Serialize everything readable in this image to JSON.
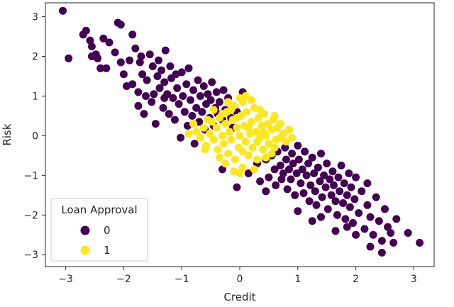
{
  "chart_data": {
    "type": "scatter",
    "title": "",
    "xlabel": "Credit",
    "ylabel": "Risk",
    "xlim": [
      -3.35,
      3.35
    ],
    "ylim": [
      -3.3,
      3.35
    ],
    "xticks": [
      -3,
      -2,
      -1,
      0,
      1,
      2,
      3
    ],
    "yticks": [
      -3,
      -2,
      -1,
      0,
      1,
      2,
      3
    ],
    "xtick_labels": [
      "−3",
      "−2",
      "−1",
      "0",
      "1",
      "2",
      "3"
    ],
    "ytick_labels": [
      "−3",
      "−2",
      "−1",
      "0",
      "1",
      "2",
      "3"
    ],
    "grid": false,
    "legend": {
      "title": "Loan Approval",
      "position": "lower-left",
      "entries": [
        {
          "label": "0",
          "color": "#440154"
        },
        {
          "label": "1",
          "color": "#fde725"
        }
      ]
    },
    "series": [
      {
        "name": "0",
        "color": "#440154",
        "points": [
          [
            -3.05,
            3.15
          ],
          [
            -2.95,
            1.95
          ],
          [
            -2.7,
            2.55
          ],
          [
            -2.65,
            2.65
          ],
          [
            -2.58,
            2.4
          ],
          [
            -2.55,
            2.0
          ],
          [
            -2.48,
            2.05
          ],
          [
            -2.45,
            1.95
          ],
          [
            -2.4,
            1.7
          ],
          [
            -2.35,
            2.45
          ],
          [
            -2.25,
            2.35
          ],
          [
            -2.15,
            2.1
          ],
          [
            -2.1,
            2.85
          ],
          [
            -2.05,
            2.8
          ],
          [
            -1.85,
            2.55
          ],
          [
            -2.05,
            1.85
          ],
          [
            -2.0,
            1.55
          ],
          [
            -1.95,
            1.25
          ],
          [
            -1.9,
            1.9
          ],
          [
            -1.85,
            1.3
          ],
          [
            -1.8,
            2.2
          ],
          [
            -1.75,
            1.1
          ],
          [
            -1.72,
            1.85
          ],
          [
            -1.7,
            2.0
          ],
          [
            -1.68,
            1.55
          ],
          [
            -1.65,
            0.55
          ],
          [
            -1.6,
            1.4
          ],
          [
            -1.55,
            2.05
          ],
          [
            -1.52,
            0.85
          ],
          [
            -1.5,
            1.75
          ],
          [
            -1.48,
            1.05
          ],
          [
            -1.45,
            0.3
          ],
          [
            -1.42,
            1.5
          ],
          [
            -1.4,
            1.9
          ],
          [
            -1.38,
            1.2
          ],
          [
            -1.35,
            1.65
          ],
          [
            -1.32,
            0.7
          ],
          [
            -1.3,
            1.35
          ],
          [
            -1.28,
            2.15
          ],
          [
            -1.25,
            1.05
          ],
          [
            -1.22,
            0.55
          ],
          [
            -1.2,
            1.75
          ],
          [
            -1.18,
            1.45
          ],
          [
            -1.15,
            0.95
          ],
          [
            -1.12,
            0.4
          ],
          [
            -1.1,
            1.55
          ],
          [
            -1.08,
            1.2
          ],
          [
            -1.05,
            0.8
          ],
          [
            -1.02,
            -0.05
          ],
          [
            -1.0,
            1.6
          ],
          [
            -0.98,
            1.0
          ],
          [
            -0.95,
            0.6
          ],
          [
            -0.92,
            1.3
          ],
          [
            -0.9,
            0.25
          ],
          [
            -0.88,
            1.7
          ],
          [
            -0.85,
            0.9
          ],
          [
            -0.82,
            0.5
          ],
          [
            -0.8,
            1.15
          ],
          [
            -0.78,
            -0.2
          ],
          [
            -0.75,
            0.7
          ],
          [
            -0.72,
            1.4
          ],
          [
            -0.7,
            0.35
          ],
          [
            -0.68,
            1.0
          ],
          [
            -0.65,
            0.6
          ],
          [
            -0.62,
            1.25
          ],
          [
            -0.6,
            0.15
          ],
          [
            -0.58,
            0.8
          ],
          [
            -0.55,
            1.05
          ],
          [
            -0.52,
            0.45
          ],
          [
            -0.5,
            0.9
          ],
          [
            -0.48,
            1.35
          ],
          [
            -0.45,
            0.25
          ],
          [
            -0.42,
            0.7
          ],
          [
            -0.4,
            1.1
          ],
          [
            -0.38,
            0.55
          ],
          [
            -0.35,
            0.85
          ],
          [
            -0.3,
            0.4
          ],
          [
            -0.28,
            1.15
          ],
          [
            -0.25,
            0.65
          ],
          [
            -0.2,
            0.95
          ],
          [
            -0.15,
            0.45
          ],
          [
            -0.1,
            0.75
          ],
          [
            -0.05,
            0.6
          ],
          [
            0.05,
            1.1
          ],
          [
            -0.12,
            0.2
          ],
          [
            -1.3,
            0.95
          ],
          [
            -1.62,
            1.0
          ],
          [
            -1.75,
            0.75
          ],
          [
            -2.3,
            1.7
          ],
          [
            -2.55,
            2.25
          ],
          [
            -0.3,
            -0.85
          ],
          [
            -0.05,
            -1.3
          ],
          [
            0.15,
            -0.95
          ],
          [
            0.3,
            -0.7
          ],
          [
            0.35,
            -1.15
          ],
          [
            0.45,
            -0.6
          ],
          [
            0.5,
            -1.05
          ],
          [
            0.55,
            -0.5
          ],
          [
            0.6,
            -0.85
          ],
          [
            0.62,
            -1.25
          ],
          [
            0.65,
            -0.4
          ],
          [
            0.7,
            -0.75
          ],
          [
            0.72,
            -1.1
          ],
          [
            0.75,
            -0.95
          ],
          [
            0.78,
            -0.3
          ],
          [
            0.8,
            -0.6
          ],
          [
            0.82,
            -1.35
          ],
          [
            0.85,
            -0.85
          ],
          [
            0.88,
            -1.1
          ],
          [
            0.9,
            -0.45
          ],
          [
            0.92,
            -0.7
          ],
          [
            0.95,
            -1.5
          ],
          [
            0.98,
            -0.95
          ],
          [
            1.0,
            -0.25
          ],
          [
            1.02,
            -0.6
          ],
          [
            1.05,
            -1.2
          ],
          [
            1.08,
            -0.85
          ],
          [
            1.1,
            -1.45
          ],
          [
            1.12,
            -0.4
          ],
          [
            1.15,
            -1.0
          ],
          [
            1.18,
            -0.7
          ],
          [
            1.2,
            -1.65
          ],
          [
            1.22,
            -1.25
          ],
          [
            1.25,
            -0.55
          ],
          [
            1.28,
            -0.95
          ],
          [
            1.3,
            -1.4
          ],
          [
            1.32,
            -1.75
          ],
          [
            1.35,
            -0.8
          ],
          [
            1.38,
            -1.15
          ],
          [
            1.4,
            -0.45
          ],
          [
            1.42,
            -1.55
          ],
          [
            1.45,
            -1.0
          ],
          [
            1.48,
            -1.3
          ],
          [
            1.5,
            -0.7
          ],
          [
            1.52,
            -1.85
          ],
          [
            1.55,
            -1.1
          ],
          [
            1.58,
            -1.5
          ],
          [
            1.6,
            -0.9
          ],
          [
            1.62,
            -1.25
          ],
          [
            1.65,
            -1.65
          ],
          [
            1.68,
            -2.0
          ],
          [
            1.7,
            -1.05
          ],
          [
            1.72,
            -1.4
          ],
          [
            1.75,
            -0.75
          ],
          [
            1.78,
            -1.7
          ],
          [
            1.8,
            -1.2
          ],
          [
            1.82,
            -2.1
          ],
          [
            1.85,
            -1.5
          ],
          [
            1.88,
            -0.95
          ],
          [
            1.9,
            -1.8
          ],
          [
            1.92,
            -1.3
          ],
          [
            1.95,
            -2.2
          ],
          [
            1.98,
            -1.6
          ],
          [
            2.0,
            -1.05
          ],
          [
            2.05,
            -1.95
          ],
          [
            2.1,
            -1.4
          ],
          [
            2.15,
            -2.35
          ],
          [
            2.2,
            -1.75
          ],
          [
            2.25,
            -2.05
          ],
          [
            2.3,
            -2.5
          ],
          [
            2.35,
            -1.55
          ],
          [
            2.4,
            -2.15
          ],
          [
            2.45,
            -2.65
          ],
          [
            2.5,
            -1.85
          ],
          [
            2.55,
            -2.3
          ],
          [
            2.6,
            -2.45
          ],
          [
            2.65,
            -2.7
          ],
          [
            2.2,
            -1.2
          ],
          [
            1.65,
            -2.4
          ],
          [
            1.4,
            -2.05
          ],
          [
            2.25,
            -2.8
          ],
          [
            2.45,
            -2.95
          ],
          [
            2.9,
            -2.45
          ],
          [
            3.1,
            -2.7
          ],
          [
            0.45,
            -1.4
          ],
          [
            1.0,
            -1.9
          ],
          [
            1.25,
            -2.15
          ],
          [
            2.0,
            -2.5
          ],
          [
            1.85,
            -2.3
          ],
          [
            2.7,
            -2.1
          ]
        ]
      },
      {
        "name": "1",
        "color": "#fde725",
        "points": [
          [
            -0.75,
            0.1
          ],
          [
            -0.68,
            -0.05
          ],
          [
            -0.62,
            0.2
          ],
          [
            -0.58,
            -0.25
          ],
          [
            -0.52,
            0.05
          ],
          [
            -0.48,
            0.35
          ],
          [
            -0.45,
            -0.1
          ],
          [
            -0.4,
            0.2
          ],
          [
            -0.38,
            -0.35
          ],
          [
            -0.35,
            0.45
          ],
          [
            -0.3,
            0.0
          ],
          [
            -0.28,
            -0.2
          ],
          [
            -0.25,
            0.3
          ],
          [
            -0.22,
            0.6
          ],
          [
            -0.2,
            -0.45
          ],
          [
            -0.18,
            0.1
          ],
          [
            -0.15,
            -0.1
          ],
          [
            -0.12,
            0.4
          ],
          [
            -0.1,
            0.75
          ],
          [
            -0.08,
            -0.6
          ],
          [
            -0.05,
            0.2
          ],
          [
            -0.02,
            -0.3
          ],
          [
            0.0,
            0.0
          ],
          [
            0.02,
            0.5
          ],
          [
            0.05,
            0.85
          ],
          [
            0.05,
            -0.8
          ],
          [
            0.08,
            0.25
          ],
          [
            0.1,
            -0.15
          ],
          [
            0.12,
            0.6
          ],
          [
            0.15,
            -0.5
          ],
          [
            0.18,
            0.05
          ],
          [
            0.2,
            0.35
          ],
          [
            0.22,
            -0.3
          ],
          [
            0.25,
            0.7
          ],
          [
            0.28,
            0.1
          ],
          [
            0.3,
            -0.15
          ],
          [
            0.32,
            0.45
          ],
          [
            0.35,
            -0.05
          ],
          [
            0.38,
            0.25
          ],
          [
            0.4,
            -0.35
          ],
          [
            0.42,
            0.55
          ],
          [
            0.45,
            0.0
          ],
          [
            0.48,
            0.3
          ],
          [
            0.5,
            -0.2
          ],
          [
            0.55,
            0.15
          ],
          [
            0.58,
            0.4
          ],
          [
            0.62,
            -0.1
          ],
          [
            0.65,
            0.2
          ],
          [
            0.7,
            -0.05
          ],
          [
            0.75,
            0.05
          ],
          [
            -0.1,
            -0.9
          ],
          [
            0.0,
            0.95
          ],
          [
            0.1,
            1.0
          ],
          [
            -0.3,
            0.55
          ],
          [
            0.3,
            -0.6
          ],
          [
            0.55,
            -0.45
          ],
          [
            -0.55,
            0.4
          ],
          [
            0.8,
            -0.15
          ],
          [
            -0.8,
            0.3
          ],
          [
            0.2,
            0.9
          ],
          [
            -0.2,
            0.85
          ],
          [
            0.0,
            -0.95
          ],
          [
            0.35,
            0.65
          ],
          [
            -0.35,
            -0.55
          ],
          [
            0.45,
            -0.55
          ],
          [
            0.6,
            0.5
          ],
          [
            -0.6,
            -0.35
          ],
          [
            0.7,
            0.3
          ],
          [
            0.25,
            -0.85
          ],
          [
            -0.45,
            0.65
          ],
          [
            0.9,
            -0.05
          ],
          [
            0.85,
            0.15
          ],
          [
            -0.88,
            0.05
          ],
          [
            0.15,
            0.2
          ],
          [
            -0.05,
            0.45
          ],
          [
            0.4,
            0.1
          ],
          [
            0.05,
            -0.4
          ],
          [
            -0.25,
            -0.7
          ],
          [
            0.6,
            -0.3
          ],
          [
            -0.15,
            0.65
          ]
        ]
      }
    ]
  }
}
